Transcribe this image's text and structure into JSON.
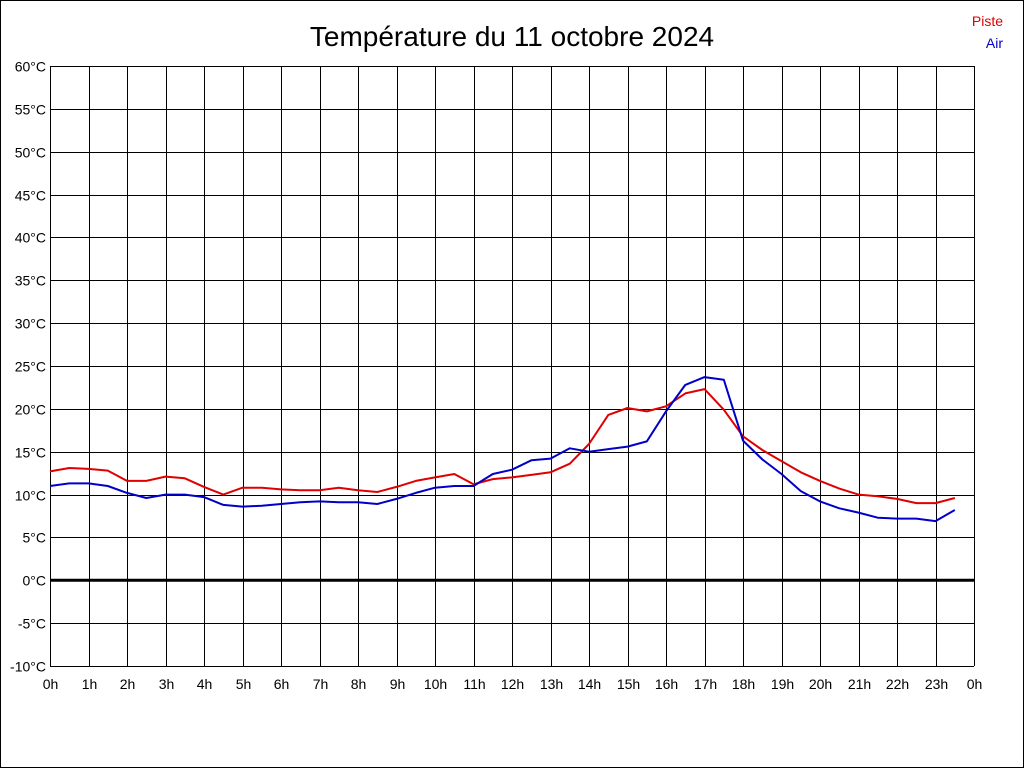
{
  "chart_data": {
    "type": "line",
    "title": "Température du 11 octobre 2024",
    "xlabel": "",
    "ylabel": "",
    "x_tick_labels": [
      "0h",
      "1h",
      "2h",
      "3h",
      "4h",
      "5h",
      "6h",
      "7h",
      "8h",
      "9h",
      "10h",
      "11h",
      "12h",
      "13h",
      "14h",
      "15h",
      "16h",
      "17h",
      "18h",
      "19h",
      "20h",
      "21h",
      "22h",
      "23h",
      "0h"
    ],
    "y_tick_labels": [
      "60°C",
      "55°C",
      "50°C",
      "45°C",
      "40°C",
      "35°C",
      "30°C",
      "25°C",
      "20°C",
      "15°C",
      "10°C",
      "5°C",
      "0°C",
      "-5°C",
      "-10°C"
    ],
    "ylim": [
      -10,
      60
    ],
    "xlim": [
      0,
      24
    ],
    "grid": true,
    "legend_position": "top-right",
    "x": [
      0,
      0.5,
      1,
      1.5,
      2,
      2.5,
      3,
      3.5,
      4,
      4.5,
      5,
      5.5,
      6,
      6.5,
      7,
      7.5,
      8,
      8.5,
      9,
      9.5,
      10,
      10.5,
      11,
      11.5,
      12,
      12.5,
      13,
      13.5,
      14,
      14.5,
      15,
      15.5,
      16,
      16.5,
      17,
      17.5,
      18,
      18.5,
      19,
      19.5,
      20,
      20.5,
      21,
      21.5,
      22,
      22.5,
      23,
      23.5
    ],
    "series": [
      {
        "name": "Piste",
        "color": "#e00000",
        "values": [
          12.7,
          13.1,
          13.0,
          12.8,
          11.6,
          11.6,
          12.1,
          11.9,
          10.9,
          10.0,
          10.8,
          10.8,
          10.6,
          10.5,
          10.5,
          10.8,
          10.5,
          10.3,
          10.9,
          11.6,
          12.0,
          12.4,
          11.2,
          11.8,
          12.0,
          12.3,
          12.6,
          13.6,
          15.9,
          19.3,
          20.1,
          19.7,
          20.3,
          21.8,
          22.3,
          19.9,
          16.8,
          15.2,
          13.9,
          12.6,
          11.6,
          10.7,
          10.0,
          9.8,
          9.5,
          9.0,
          9.0,
          9.6
        ]
      },
      {
        "name": "Air",
        "color": "#0000c8",
        "values": [
          11.0,
          11.3,
          11.3,
          11.0,
          10.2,
          9.6,
          10.0,
          10.0,
          9.7,
          8.8,
          8.6,
          8.7,
          8.9,
          9.1,
          9.2,
          9.1,
          9.1,
          8.9,
          9.5,
          10.2,
          10.8,
          11.0,
          11.0,
          12.4,
          12.9,
          14.0,
          14.2,
          15.4,
          15.0,
          15.3,
          15.6,
          16.2,
          19.7,
          22.8,
          23.7,
          23.4,
          16.3,
          14.1,
          12.4,
          10.4,
          9.2,
          8.4,
          7.9,
          7.3,
          7.2,
          7.2,
          6.9,
          8.2
        ]
      }
    ],
    "zero_line": 0,
    "colors": {
      "grid": "#000000",
      "zero_line": "#000000"
    }
  }
}
